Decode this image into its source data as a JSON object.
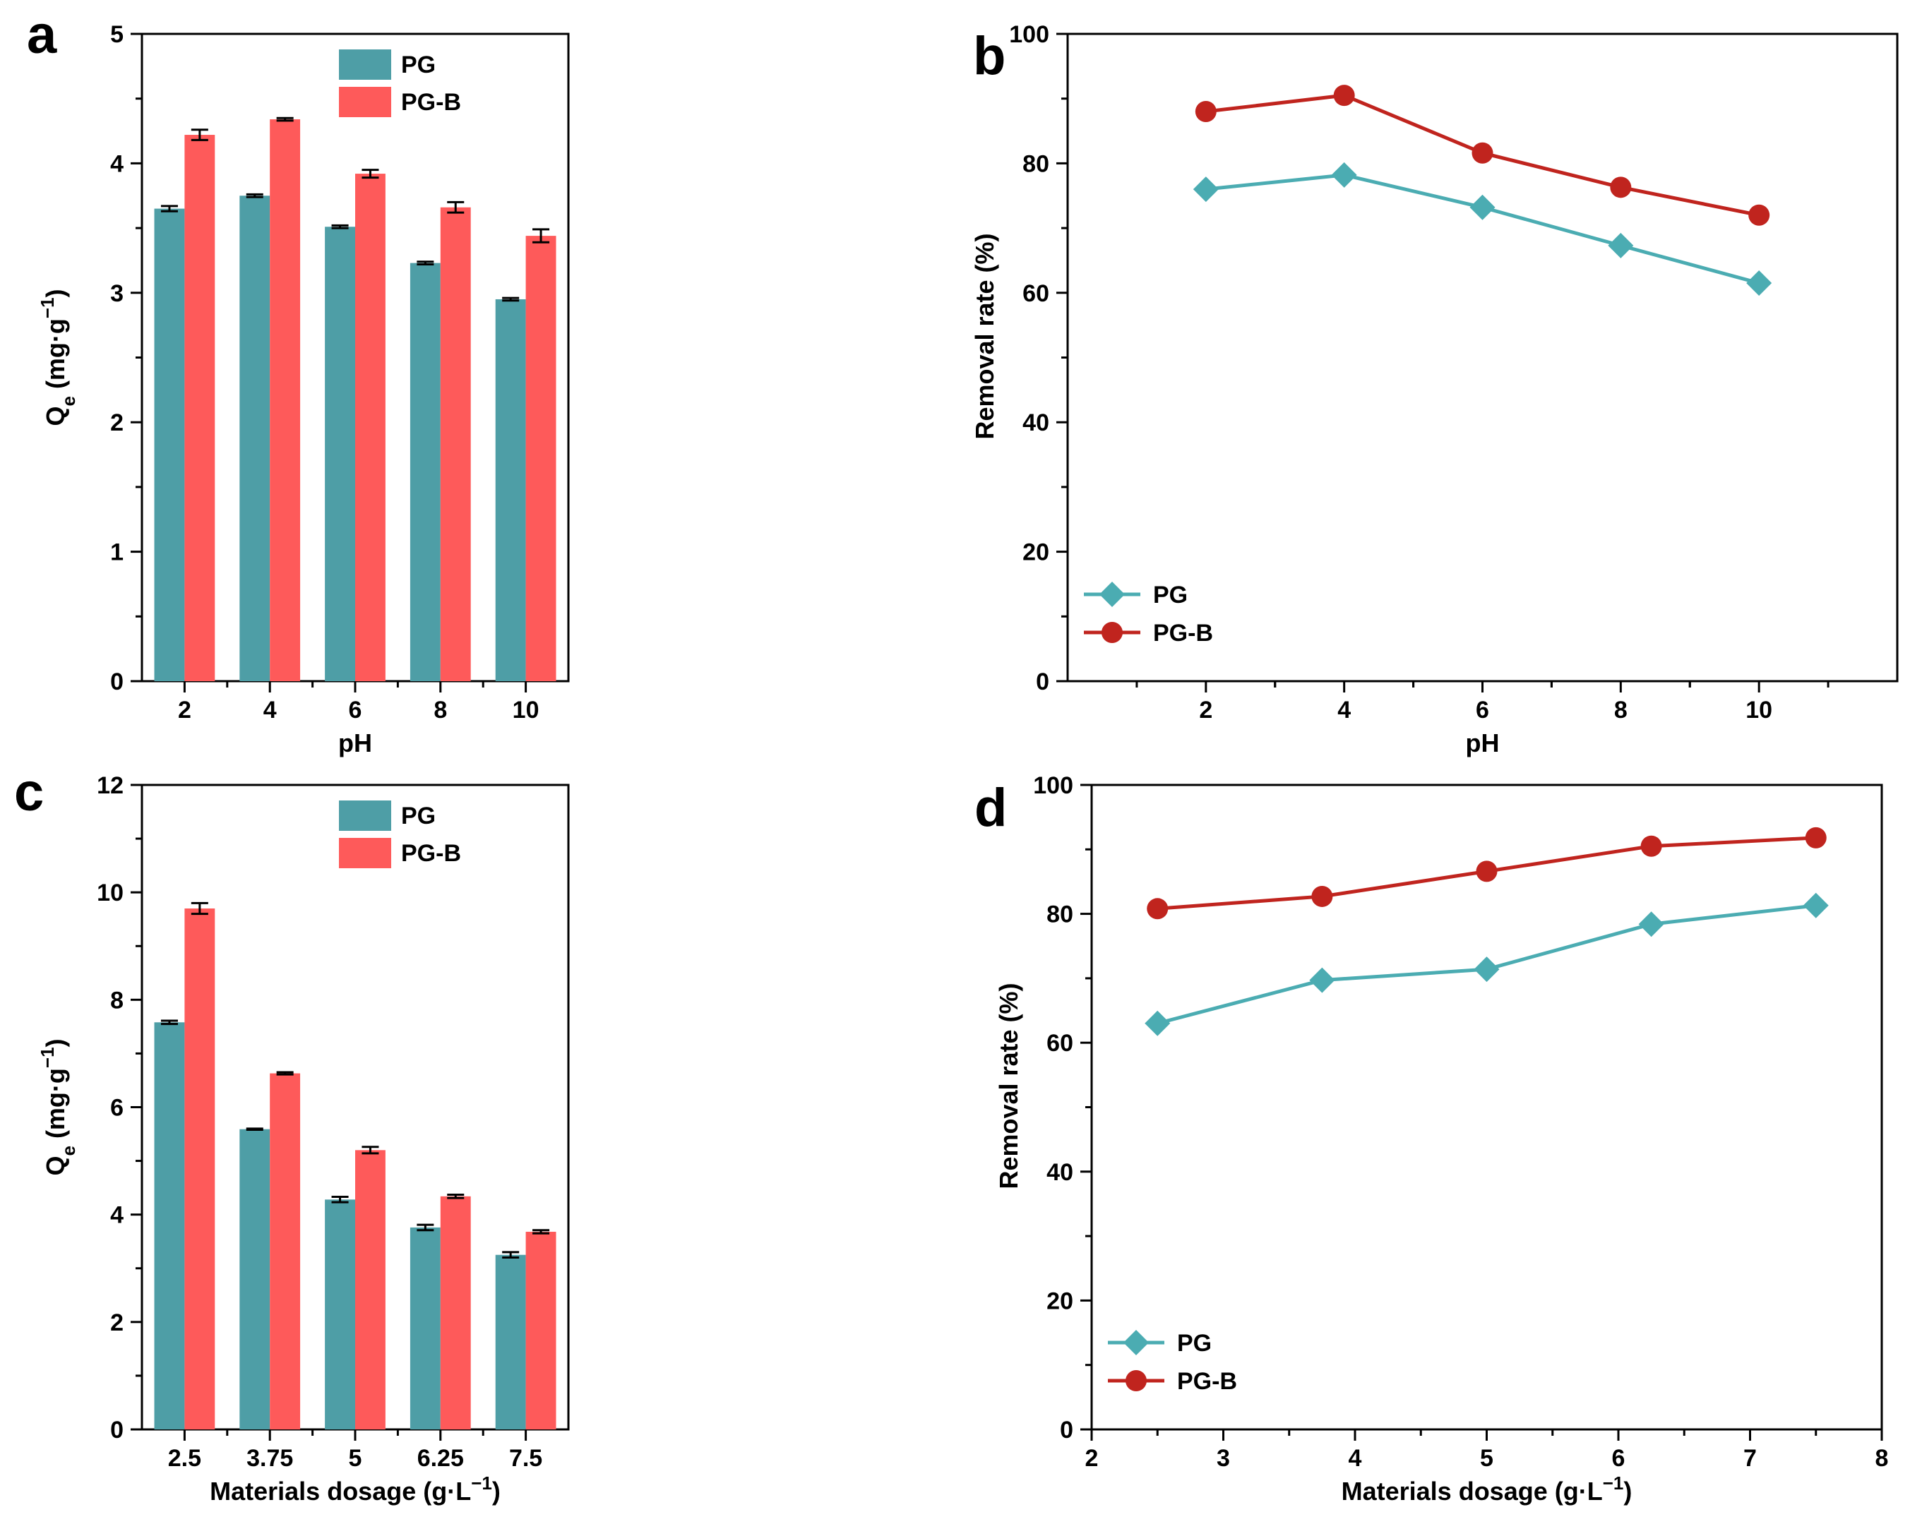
{
  "colors": {
    "pg": "#4e9ea6",
    "pgb": "#fe5a5a",
    "pg_line": "#4bacb2",
    "pgb_line": "#c0241e",
    "axis": "#000000"
  },
  "chart_data": [
    {
      "panel": "a",
      "type": "bar",
      "categories": [
        "2",
        "4",
        "6",
        "8",
        "10"
      ],
      "xlabel": "pH",
      "ylabel": "Q",
      "ylabel_sub": "e",
      "ylabel_unit": "(mg·g",
      "ylabel_sup": "−1",
      "ylabel_close": ")",
      "ylim": [
        0,
        5
      ],
      "yticks": [
        "0",
        "1",
        "2",
        "3",
        "4",
        "5"
      ],
      "legend_position": "top-right",
      "series": [
        {
          "name": "PG",
          "values": [
            3.65,
            3.75,
            3.51,
            3.23,
            2.95
          ],
          "errors": [
            0.02,
            0.01,
            0.01,
            0.01,
            0.01
          ]
        },
        {
          "name": "PG-B",
          "values": [
            4.22,
            4.34,
            3.92,
            3.66,
            3.44
          ],
          "errors": [
            0.04,
            0.01,
            0.03,
            0.04,
            0.05
          ]
        }
      ]
    },
    {
      "panel": "b",
      "type": "line",
      "x": [
        2,
        4,
        6,
        8,
        10
      ],
      "xticks": [
        "2",
        "4",
        "6",
        "8",
        "10"
      ],
      "xlim": [
        0,
        12
      ],
      "xlabel": "pH",
      "ylabel": "Removal rate (%)",
      "ylim": [
        0,
        100
      ],
      "yticks": [
        "0",
        "20",
        "40",
        "60",
        "80",
        "100"
      ],
      "legend_position": "bottom-left",
      "series": [
        {
          "name": "PG",
          "marker": "diamond",
          "values": [
            76.0,
            78.2,
            73.2,
            67.3,
            61.5
          ]
        },
        {
          "name": "PG-B",
          "marker": "circle",
          "values": [
            88.0,
            90.5,
            81.6,
            76.3,
            72.0
          ]
        }
      ]
    },
    {
      "panel": "c",
      "type": "bar",
      "categories": [
        "2.5",
        "3.75",
        "5",
        "6.25",
        "7.5"
      ],
      "xlabel": "Materials dosage (g·L",
      "xlabel_sup": "−1",
      "xlabel_close": ")",
      "ylabel": "Q",
      "ylabel_sub": "e",
      "ylabel_unit": "(mg·g",
      "ylabel_sup": "−1",
      "ylabel_close": ")",
      "ylim": [
        0,
        12
      ],
      "yticks": [
        "0",
        "2",
        "4",
        "6",
        "8",
        "10",
        "12"
      ],
      "legend_position": "top-right",
      "series": [
        {
          "name": "PG",
          "values": [
            7.58,
            5.59,
            4.28,
            3.76,
            3.25
          ],
          "errors": [
            0.03,
            0.01,
            0.05,
            0.05,
            0.05
          ]
        },
        {
          "name": "PG-B",
          "values": [
            9.7,
            6.63,
            5.2,
            4.34,
            3.68
          ],
          "errors": [
            0.1,
            0.02,
            0.06,
            0.03,
            0.03
          ]
        }
      ]
    },
    {
      "panel": "d",
      "type": "line",
      "x": [
        2.5,
        3.75,
        5,
        6.25,
        7.5
      ],
      "xticks": [
        "2",
        "3",
        "4",
        "5",
        "6",
        "7",
        "8"
      ],
      "xlim": [
        2,
        8
      ],
      "xlabel": "Materials dosage (g·L",
      "xlabel_sup": "−1",
      "xlabel_close": ")",
      "ylabel": "Removal rate (%)",
      "ylim": [
        0,
        100
      ],
      "yticks": [
        "0",
        "20",
        "40",
        "60",
        "80",
        "100"
      ],
      "legend_position": "bottom-left",
      "series": [
        {
          "name": "PG",
          "marker": "diamond",
          "values": [
            63.0,
            69.7,
            71.4,
            78.4,
            81.3
          ]
        },
        {
          "name": "PG-B",
          "marker": "circle",
          "values": [
            80.8,
            82.7,
            86.6,
            90.5,
            91.8
          ]
        }
      ]
    }
  ]
}
